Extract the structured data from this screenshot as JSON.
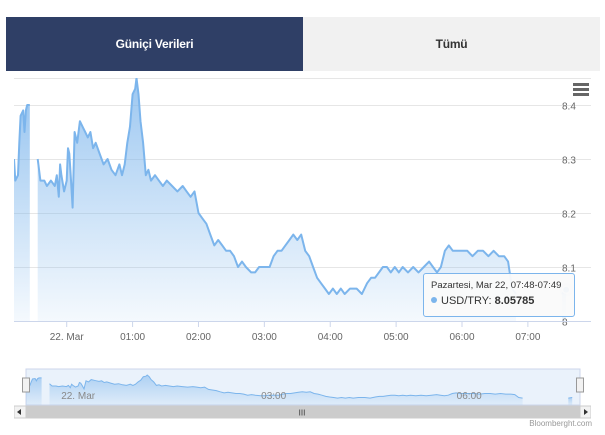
{
  "tabs": [
    {
      "label": "Güniçi Verileri",
      "active": true
    },
    {
      "label": "Tümü",
      "active": false
    }
  ],
  "icons": {
    "menu": "hamburger-menu-icon"
  },
  "colors": {
    "series": "#7cb5ec",
    "tab_active_bg": "#2f3f66",
    "tab_inactive_bg": "#f1f1f1"
  },
  "tooltip": {
    "header": "Pazartesi, Mar 22, 07:48-07:49",
    "series_label": "USD/TRY:",
    "value": "8.05785"
  },
  "credits": "Bloomberght.com",
  "navigator": {
    "x_labels": [
      "22. Mar",
      "03:00",
      "06:00"
    ],
    "scrollbar_grip": "III"
  },
  "chart_data": {
    "type": "area",
    "series": [
      {
        "name": "USD/TRY"
      }
    ],
    "x_tick_labels": [
      "22. Mar",
      "01:00",
      "02:00",
      "03:00",
      "04:00",
      "05:00",
      "06:00",
      "07:00"
    ],
    "y_tick_labels": [
      "8",
      "8.1",
      "8.2",
      "8.3",
      "8.4"
    ],
    "ylim": [
      8.0,
      8.45
    ],
    "xlim": [
      -0.8,
      7.7
    ],
    "x_ticks": [
      0,
      1,
      2,
      3,
      4,
      5,
      6,
      7
    ],
    "y_ticks": [
      8.0,
      8.1,
      8.2,
      8.3,
      8.4
    ],
    "grid": true,
    "points": [
      [
        -0.8,
        8.3
      ],
      [
        -0.78,
        8.26
      ],
      [
        -0.74,
        8.27
      ],
      [
        -0.72,
        8.33
      ],
      [
        -0.7,
        8.38
      ],
      [
        -0.66,
        8.39
      ],
      [
        -0.64,
        8.35
      ],
      [
        -0.62,
        8.39
      ],
      [
        -0.6,
        8.4
      ],
      [
        -0.56,
        8.4
      ],
      [
        -0.5,
        null
      ],
      [
        -0.44,
        8.3
      ],
      [
        -0.4,
        8.26
      ],
      [
        -0.34,
        8.26
      ],
      [
        -0.3,
        8.25
      ],
      [
        -0.24,
        8.26
      ],
      [
        -0.18,
        8.25
      ],
      [
        -0.15,
        8.27
      ],
      [
        -0.12,
        8.23
      ],
      [
        -0.1,
        8.29
      ],
      [
        -0.08,
        8.27
      ],
      [
        -0.04,
        8.24
      ],
      [
        0.0,
        8.26
      ],
      [
        0.02,
        8.32
      ],
      [
        0.04,
        8.31
      ],
      [
        0.06,
        8.27
      ],
      [
        0.09,
        8.21
      ],
      [
        0.12,
        8.35
      ],
      [
        0.16,
        8.33
      ],
      [
        0.2,
        8.37
      ],
      [
        0.24,
        8.36
      ],
      [
        0.28,
        8.35
      ],
      [
        0.32,
        8.34
      ],
      [
        0.36,
        8.35
      ],
      [
        0.4,
        8.32
      ],
      [
        0.44,
        8.33
      ],
      [
        0.5,
        8.31
      ],
      [
        0.56,
        8.29
      ],
      [
        0.62,
        8.3
      ],
      [
        0.68,
        8.28
      ],
      [
        0.74,
        8.27
      ],
      [
        0.8,
        8.29
      ],
      [
        0.84,
        8.27
      ],
      [
        0.88,
        8.29
      ],
      [
        0.92,
        8.33
      ],
      [
        0.96,
        8.36
      ],
      [
        1.0,
        8.42
      ],
      [
        1.04,
        8.43
      ],
      [
        1.06,
        8.45
      ],
      [
        1.09,
        8.42
      ],
      [
        1.12,
        8.37
      ],
      [
        1.16,
        8.33
      ],
      [
        1.2,
        8.27
      ],
      [
        1.24,
        8.28
      ],
      [
        1.28,
        8.26
      ],
      [
        1.34,
        8.27
      ],
      [
        1.4,
        8.26
      ],
      [
        1.46,
        8.25
      ],
      [
        1.52,
        8.26
      ],
      [
        1.6,
        8.25
      ],
      [
        1.68,
        8.24
      ],
      [
        1.76,
        8.25
      ],
      [
        1.82,
        8.24
      ],
      [
        1.88,
        8.23
      ],
      [
        1.94,
        8.24
      ],
      [
        2.0,
        8.2
      ],
      [
        2.06,
        8.19
      ],
      [
        2.12,
        8.18
      ],
      [
        2.18,
        8.16
      ],
      [
        2.24,
        8.14
      ],
      [
        2.3,
        8.15
      ],
      [
        2.36,
        8.14
      ],
      [
        2.42,
        8.13
      ],
      [
        2.48,
        8.13
      ],
      [
        2.54,
        8.12
      ],
      [
        2.6,
        8.1
      ],
      [
        2.66,
        8.11
      ],
      [
        2.72,
        8.1
      ],
      [
        2.8,
        8.09
      ],
      [
        2.86,
        8.09
      ],
      [
        2.92,
        8.1
      ],
      [
        3.0,
        8.1
      ],
      [
        3.08,
        8.1
      ],
      [
        3.14,
        8.12
      ],
      [
        3.2,
        8.13
      ],
      [
        3.26,
        8.13
      ],
      [
        3.32,
        8.14
      ],
      [
        3.38,
        8.15
      ],
      [
        3.44,
        8.16
      ],
      [
        3.5,
        8.15
      ],
      [
        3.56,
        8.16
      ],
      [
        3.62,
        8.13
      ],
      [
        3.68,
        8.12
      ],
      [
        3.74,
        8.1
      ],
      [
        3.8,
        8.08
      ],
      [
        3.86,
        8.07
      ],
      [
        3.92,
        8.06
      ],
      [
        3.98,
        8.05
      ],
      [
        4.04,
        8.06
      ],
      [
        4.1,
        8.05
      ],
      [
        4.16,
        8.06
      ],
      [
        4.22,
        8.05
      ],
      [
        4.3,
        8.06
      ],
      [
        4.4,
        8.06
      ],
      [
        4.48,
        8.05
      ],
      [
        4.56,
        8.07
      ],
      [
        4.62,
        8.08
      ],
      [
        4.68,
        8.08
      ],
      [
        4.74,
        8.09
      ],
      [
        4.8,
        8.1
      ],
      [
        4.86,
        8.1
      ],
      [
        4.92,
        8.09
      ],
      [
        4.98,
        8.1
      ],
      [
        5.04,
        8.09
      ],
      [
        5.1,
        8.1
      ],
      [
        5.18,
        8.09
      ],
      [
        5.26,
        8.1
      ],
      [
        5.34,
        8.09
      ],
      [
        5.42,
        8.1
      ],
      [
        5.5,
        8.11
      ],
      [
        5.56,
        8.1
      ],
      [
        5.62,
        8.09
      ],
      [
        5.68,
        8.1
      ],
      [
        5.74,
        8.13
      ],
      [
        5.8,
        8.14
      ],
      [
        5.86,
        8.13
      ],
      [
        5.92,
        8.13
      ],
      [
        6.0,
        8.13
      ],
      [
        6.08,
        8.13
      ],
      [
        6.16,
        8.12
      ],
      [
        6.24,
        8.13
      ],
      [
        6.32,
        8.13
      ],
      [
        6.4,
        8.12
      ],
      [
        6.48,
        8.13
      ],
      [
        6.56,
        8.12
      ],
      [
        6.64,
        8.12
      ],
      [
        6.7,
        8.11
      ],
      [
        6.76,
        8.06
      ],
      [
        6.82,
        8.05
      ],
      [
        6.86,
        null
      ],
      [
        7.52,
        8.05
      ],
      [
        7.58,
        8.06
      ]
    ],
    "highlight_point": [
      7.58,
      8.05785
    ]
  }
}
